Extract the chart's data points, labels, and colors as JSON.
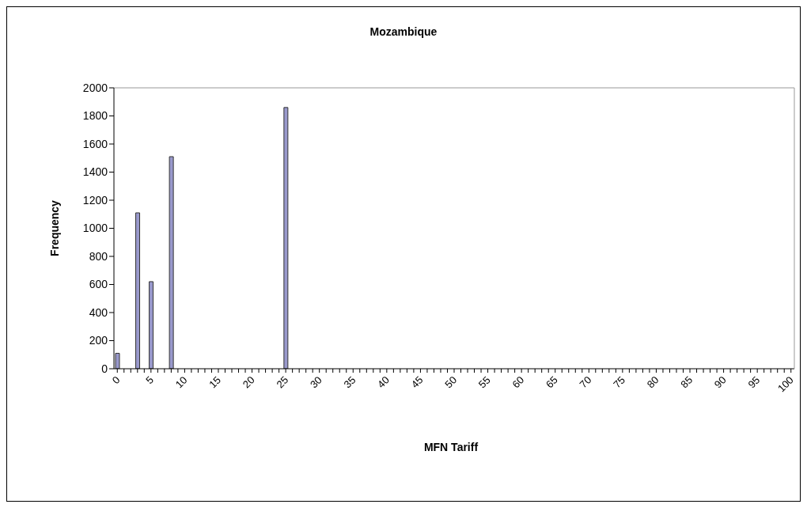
{
  "chart_data": {
    "type": "bar",
    "title": "Mozambique",
    "xlabel": "MFN Tariff",
    "ylabel": "Frequency",
    "categories": [
      "0",
      null,
      null,
      null,
      null,
      "5",
      null,
      null,
      null,
      null,
      "10",
      null,
      null,
      null,
      null,
      "15",
      null,
      null,
      null,
      null,
      "20",
      null,
      null,
      null,
      null,
      "25",
      null,
      null,
      null,
      null,
      "30",
      null,
      null,
      null,
      null,
      "35",
      null,
      null,
      null,
      null,
      "40",
      null,
      null,
      null,
      null,
      "45",
      null,
      null,
      null,
      null,
      "50",
      null,
      null,
      null,
      null,
      "55",
      null,
      null,
      null,
      null,
      "60",
      null,
      null,
      null,
      null,
      "65",
      null,
      null,
      null,
      null,
      "70",
      null,
      null,
      null,
      null,
      "75",
      null,
      null,
      null,
      null,
      "80",
      null,
      null,
      null,
      null,
      "85",
      null,
      null,
      null,
      null,
      "90",
      null,
      null,
      null,
      null,
      "95",
      null,
      null,
      null,
      null,
      "100"
    ],
    "values": [
      110,
      0,
      0,
      1110,
      0,
      620,
      0,
      0,
      1510,
      0,
      0,
      0,
      0,
      0,
      0,
      0,
      0,
      0,
      0,
      0,
      0,
      0,
      0,
      0,
      0,
      1860,
      0,
      0,
      0,
      0,
      0,
      0,
      0,
      0,
      0,
      0,
      0,
      0,
      0,
      0,
      0,
      0,
      0,
      0,
      0,
      0,
      0,
      0,
      0,
      0,
      0,
      0,
      0,
      0,
      0,
      0,
      0,
      0,
      0,
      0,
      0,
      0,
      0,
      0,
      0,
      0,
      0,
      0,
      0,
      0,
      0,
      0,
      0,
      0,
      0,
      0,
      0,
      0,
      0,
      0,
      0,
      0,
      0,
      0,
      0,
      0,
      0,
      0,
      0,
      0,
      0,
      0,
      0,
      0,
      0,
      0,
      0,
      0,
      0,
      0,
      0
    ],
    "color": "#9999cc",
    "ylim": [
      0,
      2000
    ],
    "yticks": [
      0,
      200,
      400,
      600,
      800,
      1000,
      1200,
      1400,
      1600,
      1800,
      2000
    ]
  }
}
